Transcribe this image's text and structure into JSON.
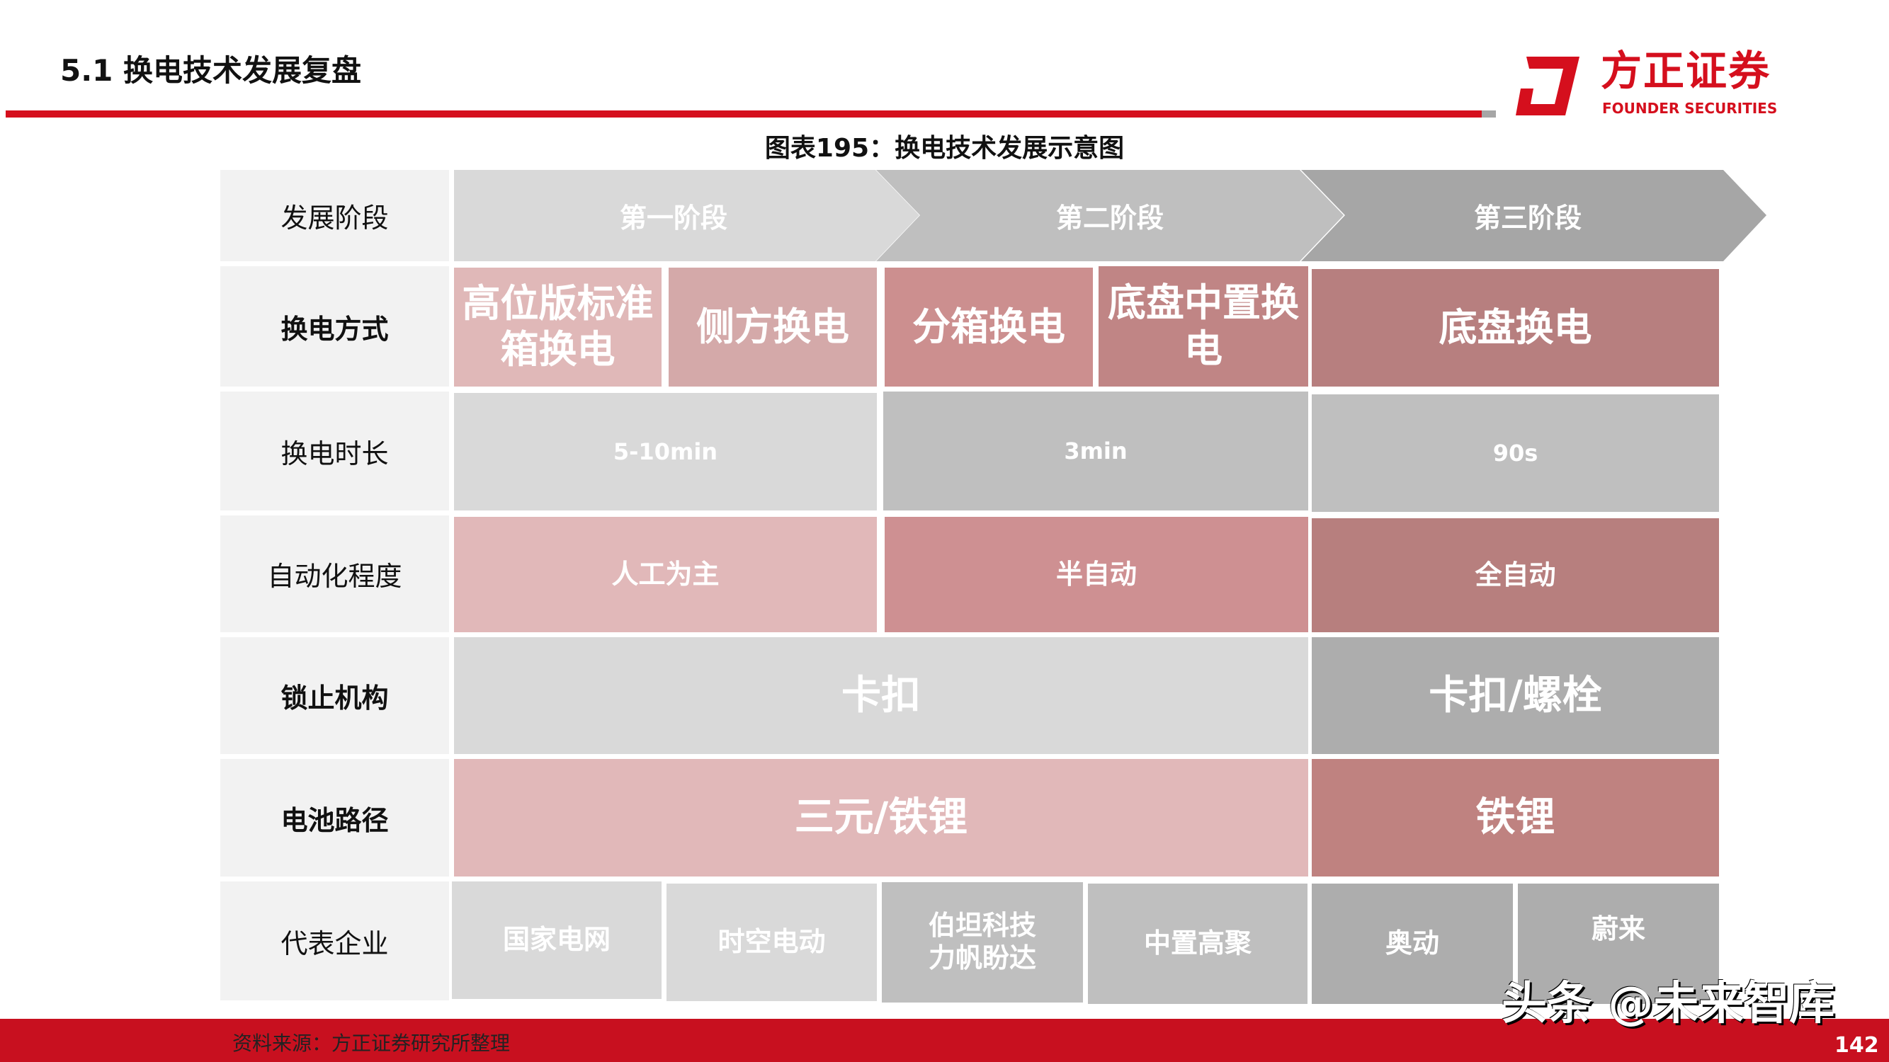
{
  "header": {
    "title": "5.1 换电技术发展复盘",
    "logo_cn": "方正证券",
    "logo_en": "FOUNDER SECURITIES",
    "brand_color": "#d50f1d"
  },
  "caption": "图表195：换电技术发展示意图",
  "table": {
    "row_labels": [
      "发展阶段",
      "换电方式",
      "换电时长",
      "自动化程度",
      "锁止机构",
      "电池路径",
      "代表企业"
    ],
    "stages": [
      "第一阶段",
      "第二阶段",
      "第三阶段"
    ],
    "swap_methods": [
      "高位版标准箱换电",
      "侧方换电",
      "分箱换电",
      "底盘中置换电",
      "底盘换电"
    ],
    "swap_time": [
      "5-10min",
      "3min",
      "90s"
    ],
    "automation": [
      "人工为主",
      "半自动",
      "全自动"
    ],
    "locking": [
      "卡扣",
      "卡扣/螺栓"
    ],
    "battery": [
      "三元/铁锂",
      "铁锂"
    ],
    "companies": [
      "国家电网",
      "时空电动",
      "伯坦科技\n力帆盼达",
      "中置高聚",
      "奥动",
      "蔚来"
    ]
  },
  "footer": {
    "source": "资料来源：方正证券研究所整理",
    "page": "142",
    "watermark": "头条 @未来智库"
  }
}
